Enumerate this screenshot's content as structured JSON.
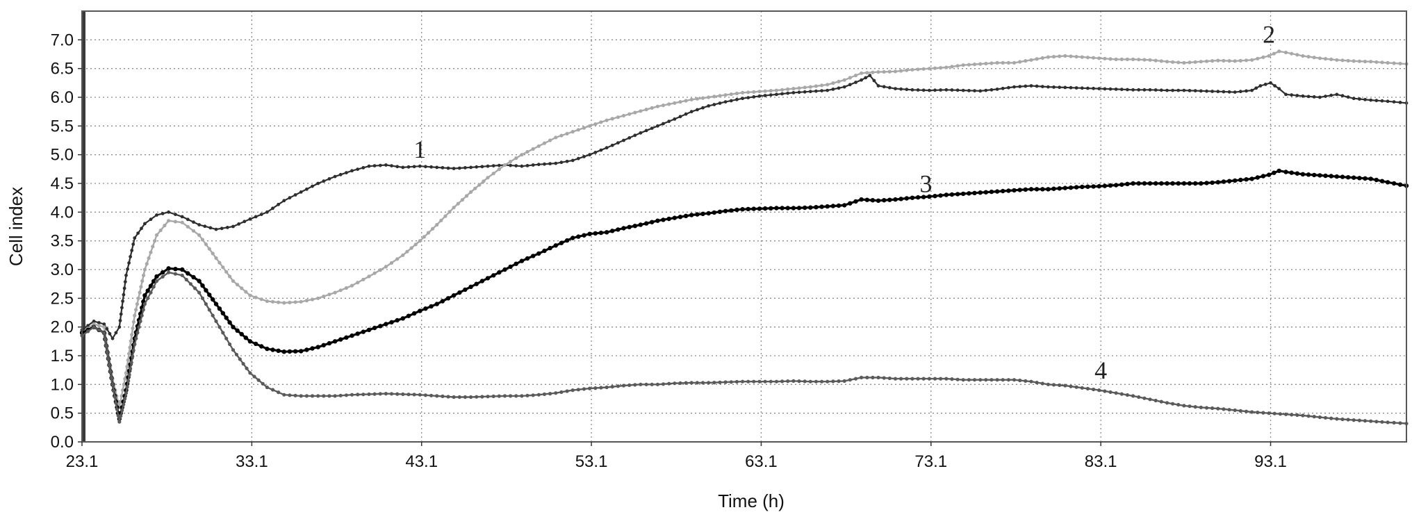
{
  "colors": {
    "background": "#ffffff",
    "frame": "#555555",
    "grid": "#8a8a8a"
  },
  "chart_data": {
    "type": "line",
    "title": "",
    "xlabel": "Time (h)",
    "ylabel": "Cell index",
    "xlim": [
      23.1,
      101.1
    ],
    "ylim": [
      0,
      7.5
    ],
    "x_ticks": [
      23.1,
      33.1,
      43.1,
      53.1,
      63.1,
      73.1,
      83.1,
      93.1
    ],
    "x_tick_labels": [
      "23.1",
      "33.1",
      "43.1",
      "53.1",
      "63.1",
      "73.1",
      "83.1",
      "93.1"
    ],
    "y_ticks": [
      0.0,
      0.5,
      1.0,
      1.5,
      2.0,
      2.5,
      3.0,
      3.5,
      4.0,
      4.5,
      5.0,
      5.5,
      6.0,
      6.5,
      7.0
    ],
    "y_tick_labels": [
      "0.0",
      "0.5",
      "1.0",
      "1.5",
      "2.0",
      "2.5",
      "3.0",
      "3.5",
      "4.0",
      "4.5",
      "5.0",
      "5.5",
      "6.0",
      "6.5",
      "7.0"
    ],
    "grid": true,
    "series": [
      {
        "label": "1",
        "color": "#2e2e2e",
        "line_width": 2.2,
        "marker_r": 2.4,
        "label_pos": [
          43.0,
          4.95
        ],
        "x": [
          23.1,
          23.8,
          24.4,
          24.9,
          25.3,
          25.7,
          26.2,
          26.8,
          27.5,
          28.2,
          29.0,
          30.0,
          31.0,
          32.0,
          33.0,
          34.0,
          35.0,
          36.0,
          37.0,
          38.0,
          39.0,
          40.0,
          41.0,
          42.0,
          43.0,
          44.0,
          45.0,
          46.0,
          47.0,
          48.0,
          49.0,
          50.0,
          51.0,
          52.0,
          53.0,
          54.0,
          55.0,
          56.0,
          57.0,
          58.0,
          59.0,
          60.0,
          61.0,
          62.0,
          63.0,
          64.0,
          65.0,
          66.0,
          67.0,
          68.0,
          69.0,
          69.5,
          70.0,
          71.0,
          72.0,
          73.0,
          74.0,
          75.0,
          76.0,
          77.0,
          78.0,
          79.0,
          80.0,
          81.0,
          82.0,
          83.0,
          84.0,
          85.0,
          86.0,
          87.0,
          88.0,
          89.0,
          90.0,
          91.0,
          92.0,
          92.5,
          93.1,
          93.6,
          94.0,
          95.0,
          96.0,
          97.0,
          98.0,
          99.0,
          100.0,
          101.1
        ],
        "y": [
          1.95,
          2.1,
          2.05,
          1.8,
          2.0,
          2.9,
          3.55,
          3.8,
          3.95,
          4.0,
          3.92,
          3.78,
          3.7,
          3.75,
          3.88,
          4.0,
          4.2,
          4.35,
          4.5,
          4.62,
          4.72,
          4.8,
          4.82,
          4.78,
          4.8,
          4.78,
          4.76,
          4.78,
          4.8,
          4.82,
          4.8,
          4.83,
          4.85,
          4.9,
          5.0,
          5.12,
          5.25,
          5.38,
          5.5,
          5.62,
          5.75,
          5.85,
          5.92,
          5.98,
          6.02,
          6.05,
          6.08,
          6.1,
          6.12,
          6.18,
          6.3,
          6.38,
          6.2,
          6.15,
          6.13,
          6.12,
          6.13,
          6.12,
          6.11,
          6.14,
          6.18,
          6.2,
          6.18,
          6.17,
          6.16,
          6.15,
          6.14,
          6.13,
          6.13,
          6.12,
          6.12,
          6.11,
          6.1,
          6.09,
          6.12,
          6.2,
          6.25,
          6.15,
          6.05,
          6.02,
          6.0,
          6.05,
          5.98,
          5.95,
          5.93,
          5.9
        ]
      },
      {
        "label": "2",
        "color": "#a8a8a8",
        "line_width": 2.4,
        "marker_r": 2.6,
        "label_pos": [
          93.0,
          6.95
        ],
        "x": [
          23.1,
          23.8,
          24.4,
          24.9,
          25.3,
          25.7,
          26.2,
          26.8,
          27.5,
          28.2,
          29.0,
          30.0,
          31.0,
          32.0,
          33.0,
          34.0,
          35.0,
          36.0,
          37.0,
          38.0,
          39.0,
          40.0,
          41.0,
          42.0,
          43.0,
          44.0,
          45.0,
          46.0,
          47.0,
          48.0,
          49.0,
          50.0,
          51.0,
          52.0,
          53.0,
          54.0,
          55.0,
          56.0,
          57.0,
          58.0,
          59.0,
          60.0,
          61.0,
          62.0,
          63.0,
          64.0,
          65.0,
          66.0,
          67.0,
          68.0,
          69.0,
          70.0,
          71.0,
          72.0,
          73.0,
          74.0,
          75.0,
          76.0,
          77.0,
          78.0,
          79.0,
          80.0,
          81.0,
          82.0,
          83.0,
          84.0,
          85.0,
          86.0,
          87.0,
          88.0,
          89.0,
          90.0,
          91.0,
          92.0,
          93.0,
          93.6,
          94.0,
          95.0,
          96.0,
          97.0,
          98.0,
          99.0,
          100.0,
          101.1
        ],
        "y": [
          1.9,
          2.05,
          2.0,
          1.1,
          0.6,
          1.2,
          2.2,
          3.0,
          3.6,
          3.85,
          3.82,
          3.6,
          3.2,
          2.8,
          2.55,
          2.45,
          2.42,
          2.44,
          2.5,
          2.6,
          2.72,
          2.88,
          3.05,
          3.25,
          3.5,
          3.78,
          4.08,
          4.35,
          4.6,
          4.82,
          5.0,
          5.15,
          5.3,
          5.4,
          5.5,
          5.6,
          5.68,
          5.76,
          5.84,
          5.9,
          5.96,
          6.0,
          6.04,
          6.08,
          6.1,
          6.12,
          6.15,
          6.18,
          6.22,
          6.3,
          6.42,
          6.44,
          6.45,
          6.48,
          6.5,
          6.52,
          6.56,
          6.58,
          6.6,
          6.6,
          6.65,
          6.7,
          6.72,
          6.7,
          6.68,
          6.66,
          6.66,
          6.65,
          6.62,
          6.6,
          6.62,
          6.64,
          6.63,
          6.65,
          6.72,
          6.8,
          6.78,
          6.72,
          6.68,
          6.65,
          6.63,
          6.62,
          6.6,
          6.58
        ]
      },
      {
        "label": "3",
        "color": "#000000",
        "line_width": 3.2,
        "marker_r": 3.2,
        "label_pos": [
          72.8,
          4.35
        ],
        "x": [
          23.1,
          23.8,
          24.4,
          24.9,
          25.3,
          25.7,
          26.2,
          26.8,
          27.5,
          28.2,
          29.0,
          30.0,
          31.0,
          32.0,
          33.0,
          34.0,
          35.0,
          36.0,
          37.0,
          38.0,
          39.0,
          40.0,
          41.0,
          42.0,
          43.0,
          44.0,
          45.0,
          46.0,
          47.0,
          48.0,
          49.0,
          50.0,
          51.0,
          52.0,
          53.0,
          54.0,
          55.0,
          56.0,
          57.0,
          58.0,
          59.0,
          60.0,
          61.0,
          62.0,
          63.0,
          64.0,
          65.0,
          66.0,
          67.0,
          68.0,
          69.0,
          70.0,
          71.0,
          72.0,
          73.0,
          74.0,
          75.0,
          76.0,
          77.0,
          78.0,
          79.0,
          80.0,
          81.0,
          82.0,
          83.0,
          84.0,
          85.0,
          86.0,
          87.0,
          88.0,
          89.0,
          90.0,
          91.0,
          92.0,
          93.0,
          93.6,
          94.0,
          95.0,
          96.0,
          97.0,
          98.0,
          99.0,
          100.0,
          101.1
        ],
        "y": [
          1.9,
          2.0,
          1.9,
          1.0,
          0.4,
          0.9,
          1.8,
          2.55,
          2.88,
          3.02,
          3.0,
          2.8,
          2.4,
          2.0,
          1.75,
          1.62,
          1.57,
          1.58,
          1.65,
          1.75,
          1.85,
          1.95,
          2.05,
          2.15,
          2.28,
          2.4,
          2.55,
          2.7,
          2.85,
          3.0,
          3.15,
          3.28,
          3.42,
          3.55,
          3.62,
          3.65,
          3.72,
          3.78,
          3.85,
          3.9,
          3.95,
          3.98,
          4.02,
          4.05,
          4.06,
          4.07,
          4.07,
          4.08,
          4.1,
          4.12,
          4.22,
          4.2,
          4.22,
          4.25,
          4.27,
          4.3,
          4.32,
          4.34,
          4.36,
          4.38,
          4.4,
          4.4,
          4.42,
          4.44,
          4.45,
          4.47,
          4.5,
          4.5,
          4.5,
          4.5,
          4.5,
          4.52,
          4.55,
          4.58,
          4.65,
          4.72,
          4.7,
          4.66,
          4.64,
          4.62,
          4.6,
          4.58,
          4.52,
          4.46
        ]
      },
      {
        "label": "4",
        "color": "#5a5a5a",
        "line_width": 2.4,
        "marker_r": 2.6,
        "label_pos": [
          83.1,
          1.1
        ],
        "x": [
          23.1,
          23.8,
          24.4,
          24.9,
          25.3,
          25.7,
          26.2,
          26.8,
          27.5,
          28.2,
          29.0,
          30.0,
          31.0,
          32.0,
          33.0,
          34.0,
          35.0,
          36.0,
          37.0,
          38.0,
          39.0,
          40.0,
          41.0,
          42.0,
          43.0,
          44.0,
          45.0,
          46.0,
          47.0,
          48.0,
          49.0,
          50.0,
          51.0,
          52.0,
          53.0,
          54.0,
          55.0,
          56.0,
          57.0,
          58.0,
          59.0,
          60.0,
          61.0,
          62.0,
          63.0,
          64.0,
          65.0,
          66.0,
          67.0,
          68.0,
          69.0,
          70.0,
          71.0,
          72.0,
          73.0,
          74.0,
          75.0,
          76.0,
          77.0,
          78.0,
          79.0,
          80.0,
          81.0,
          82.0,
          83.0,
          84.0,
          85.0,
          86.0,
          87.0,
          88.0,
          89.0,
          90.0,
          91.0,
          92.0,
          93.0,
          94.0,
          95.0,
          96.0,
          97.0,
          98.0,
          99.0,
          100.0,
          101.1
        ],
        "y": [
          1.85,
          2.0,
          1.9,
          1.0,
          0.35,
          0.85,
          1.7,
          2.4,
          2.8,
          2.95,
          2.9,
          2.6,
          2.1,
          1.6,
          1.2,
          0.95,
          0.82,
          0.8,
          0.8,
          0.8,
          0.82,
          0.83,
          0.84,
          0.83,
          0.82,
          0.8,
          0.78,
          0.78,
          0.79,
          0.8,
          0.8,
          0.82,
          0.85,
          0.9,
          0.93,
          0.95,
          0.98,
          1.0,
          1.0,
          1.02,
          1.03,
          1.03,
          1.04,
          1.05,
          1.05,
          1.05,
          1.06,
          1.05,
          1.05,
          1.06,
          1.12,
          1.12,
          1.1,
          1.1,
          1.1,
          1.1,
          1.08,
          1.08,
          1.08,
          1.08,
          1.05,
          1.0,
          0.98,
          0.94,
          0.9,
          0.85,
          0.8,
          0.74,
          0.68,
          0.63,
          0.6,
          0.58,
          0.55,
          0.52,
          0.5,
          0.48,
          0.46,
          0.43,
          0.4,
          0.38,
          0.36,
          0.34,
          0.32
        ]
      }
    ]
  }
}
